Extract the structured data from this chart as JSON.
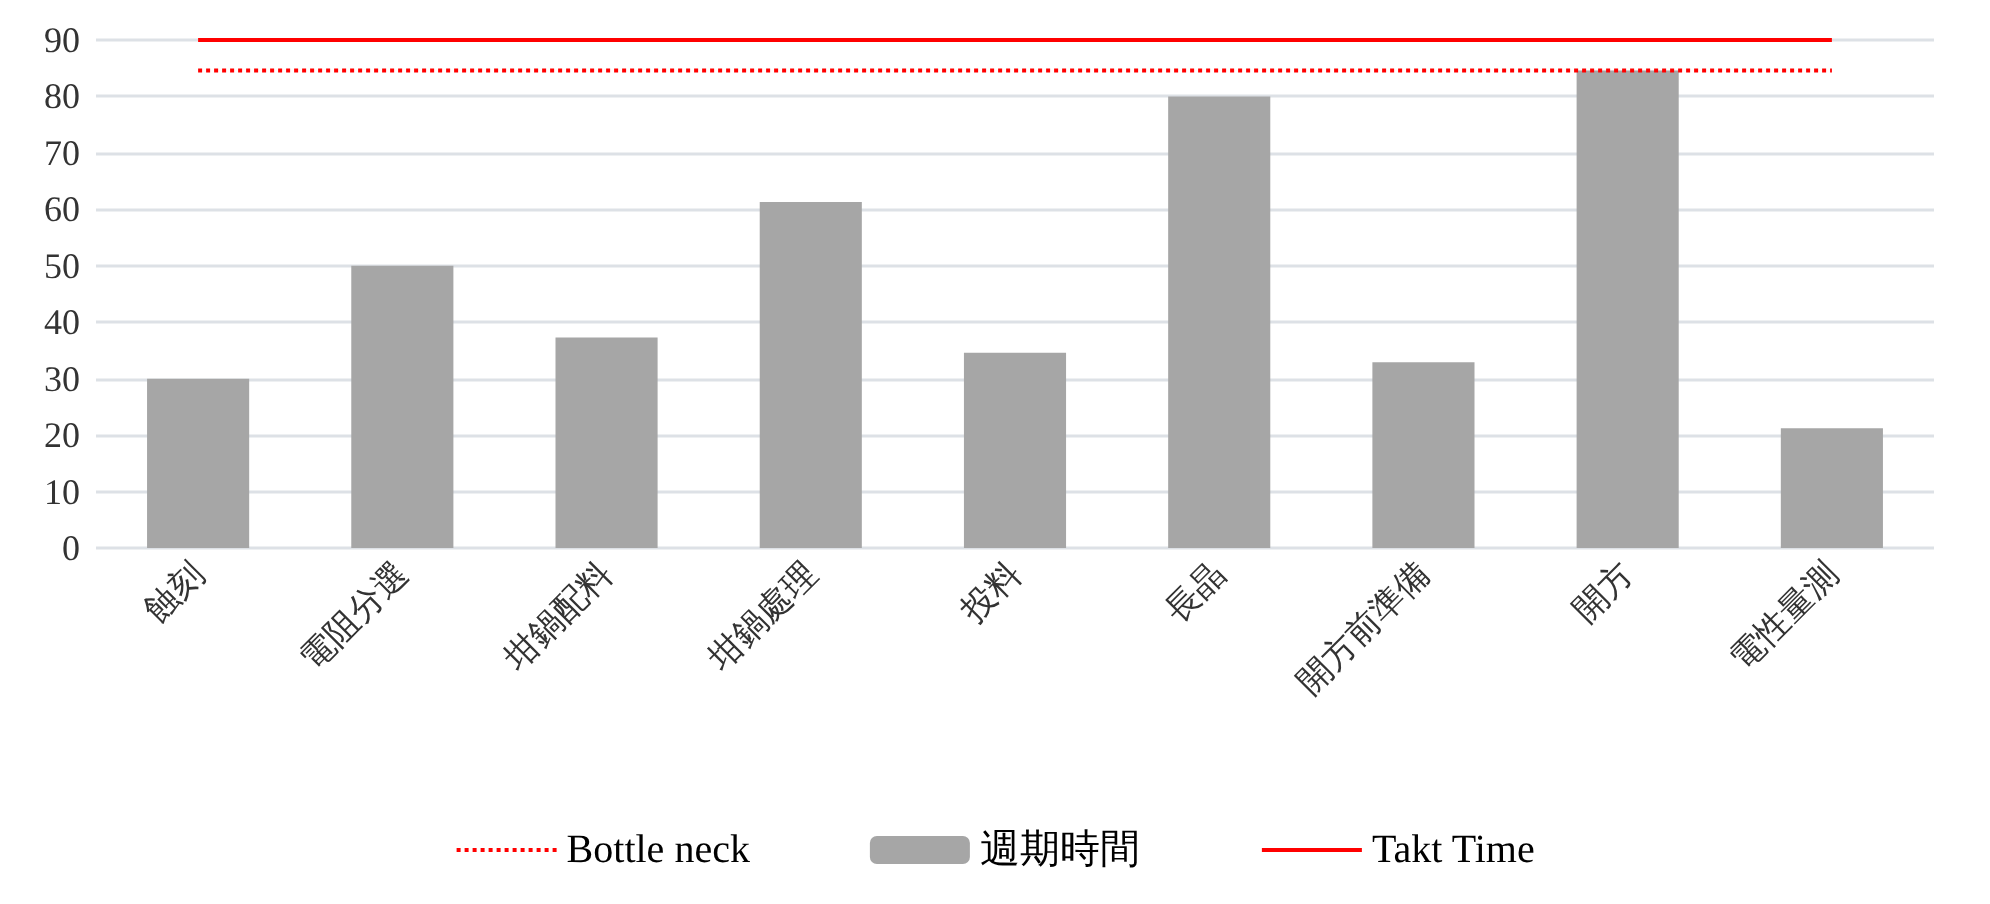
{
  "chart_data": {
    "type": "bar",
    "categories": [
      "蝕刻",
      "電阻分選",
      "坩鍋配料",
      "坩鍋處理",
      "投料",
      "長晶",
      "開方前準備",
      "開方",
      "電性量測"
    ],
    "series": [
      {
        "name": "Bottle neck",
        "type": "line",
        "line_style": "dotted",
        "color": "#ff0000",
        "values": [
          84.6,
          84.6,
          84.6,
          84.6,
          84.6,
          84.6,
          84.6,
          84.6,
          84.6
        ]
      },
      {
        "name": "週期時間",
        "color": "#a6a6a6",
        "values": [
          30,
          50,
          37.3,
          61.3,
          34.6,
          80,
          32.9,
          84.6,
          21.2
        ]
      },
      {
        "name": "Takt Time",
        "type": "line",
        "line_style": "solid",
        "color": "#ff0000",
        "values": [
          90,
          90,
          90,
          90,
          90,
          90,
          90,
          90,
          90
        ]
      }
    ],
    "ylim": [
      0,
      90
    ],
    "yticks": [
      0,
      10,
      20,
      30,
      40,
      50,
      60,
      70,
      80,
      90
    ],
    "grid": "y",
    "legend": "bottom",
    "marker": "none"
  }
}
